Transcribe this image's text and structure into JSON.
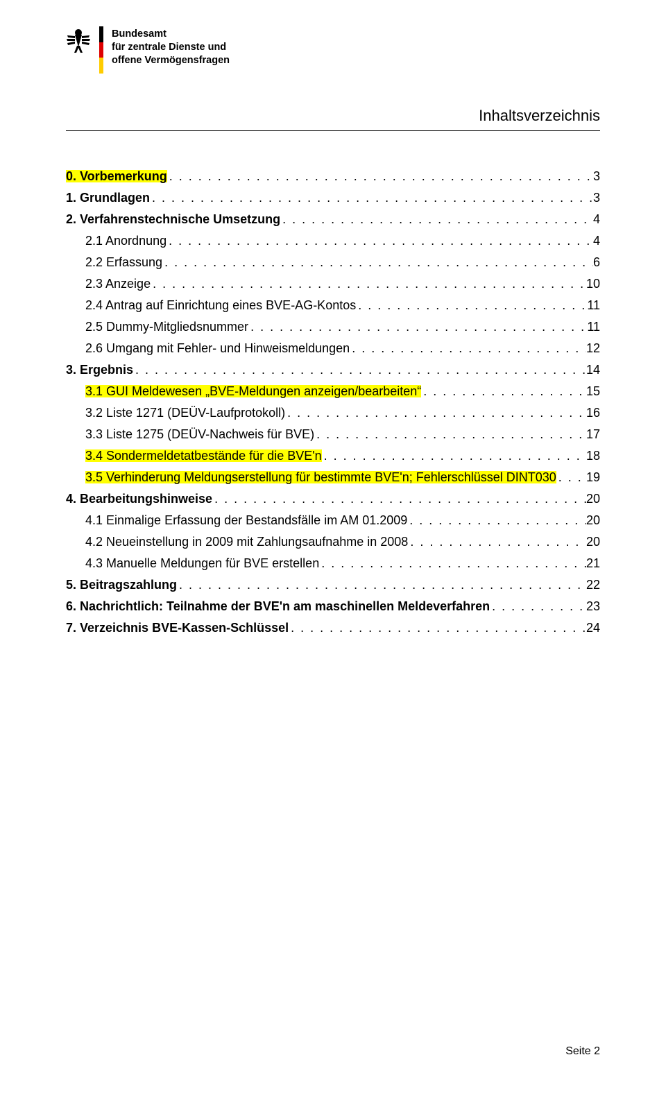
{
  "agency": {
    "line1": "Bundesamt",
    "line2": "für zentrale Dienste und",
    "line3": "offene Vermögensfragen"
  },
  "title": "Inhaltsverzeichnis",
  "toc": [
    {
      "level": 0,
      "label": "0. Vorbemerkung",
      "page": "3",
      "highlight": true
    },
    {
      "level": 0,
      "label": "1. Grundlagen",
      "page": "3",
      "highlight": false
    },
    {
      "level": 0,
      "label": "2. Verfahrenstechnische Umsetzung",
      "page": "4",
      "highlight": false
    },
    {
      "level": 1,
      "label": "2.1 Anordnung",
      "page": "4",
      "highlight": false
    },
    {
      "level": 1,
      "label": "2.2 Erfassung",
      "page": "6",
      "highlight": false
    },
    {
      "level": 1,
      "label": "2.3 Anzeige",
      "page": "10",
      "highlight": false
    },
    {
      "level": 1,
      "label": "2.4 Antrag auf Einrichtung eines BVE-AG-Kontos",
      "page": "11",
      "highlight": false
    },
    {
      "level": 1,
      "label": "2.5 Dummy-Mitgliedsnummer",
      "page": "11",
      "highlight": false
    },
    {
      "level": 1,
      "label": "2.6 Umgang mit Fehler- und Hinweismeldungen",
      "page": "12",
      "highlight": false
    },
    {
      "level": 0,
      "label": "3. Ergebnis",
      "page": "14",
      "highlight": false
    },
    {
      "level": 1,
      "label": "3.1 GUI Meldewesen „BVE-Meldungen anzeigen/bearbeiten“",
      "page": "15",
      "highlight": true
    },
    {
      "level": 1,
      "label": "3.2 Liste 1271 (DEÜV-Laufprotokoll)",
      "page": "16",
      "highlight": false
    },
    {
      "level": 1,
      "label": "3.3 Liste 1275 (DEÜV-Nachweis für BVE)",
      "page": "17",
      "highlight": false
    },
    {
      "level": 1,
      "label": "3.4 Sondermeldetatbestände für die BVE'n",
      "page": "18",
      "highlight": true
    },
    {
      "level": 1,
      "label": "3.5 Verhinderung Meldungserstellung für bestimmte BVE'n; Fehlerschlüssel DINT030",
      "page": "19",
      "highlight": true
    },
    {
      "level": 0,
      "label": "4. Bearbeitungshinweise",
      "page": "20",
      "highlight": false
    },
    {
      "level": 1,
      "label": "4.1 Einmalige Erfassung der Bestandsfälle im AM 01.2009",
      "page": "20",
      "highlight": false
    },
    {
      "level": 1,
      "label": "4.2 Neueinstellung in 2009 mit Zahlungsaufnahme in 2008",
      "page": "20",
      "highlight": false
    },
    {
      "level": 1,
      "label": "4.3 Manuelle Meldungen für BVE erstellen",
      "page": "21",
      "highlight": false
    },
    {
      "level": 0,
      "label": "5. Beitragszahlung",
      "page": "22",
      "highlight": false
    },
    {
      "level": 0,
      "label": "6. Nachrichtlich: Teilnahme der BVE'n am maschinellen Meldeverfahren",
      "page": "23",
      "highlight": false
    },
    {
      "level": 0,
      "label": "7. Verzeichnis BVE-Kassen-Schlüssel",
      "page": "24",
      "highlight": false
    }
  ],
  "footer": "Seite 2",
  "colors": {
    "highlight": "#ffff00",
    "text": "#000000",
    "background": "#ffffff"
  }
}
